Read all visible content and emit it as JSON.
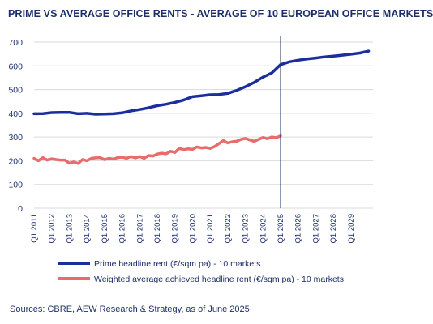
{
  "title": "PRIME VS AVERAGE OFFICE RENTS - AVERAGE OF 10 EUROPEAN OFFICE MARKETS",
  "source": "Sources: CBRE, AEW Research & Strategy, as of June 2025",
  "chart_data": {
    "type": "line",
    "title": "PRIME VS AVERAGE OFFICE RENTS - AVERAGE OF 10 EUROPEAN OFFICE MARKETS",
    "ylim": [
      0,
      700
    ],
    "yticks": [
      "0",
      "100",
      "200",
      "300",
      "400",
      "500",
      "600",
      "700"
    ],
    "xlim": [
      2011,
      2030.25
    ],
    "xtick_labels": [
      "Q1 2011",
      "Q1 2012",
      "Q1 2013",
      "Q1 2014",
      "Q1 2015",
      "Q1 2016",
      "Q1 2017",
      "Q1 2018",
      "Q1 2019",
      "Q1 2020",
      "Q1 2021",
      "Q1 2022",
      "Q1 2023",
      "Q1 2024",
      "Q1 2025",
      "Q1 2026",
      "Q1 2027",
      "Q1 2028",
      "Q1 2029"
    ],
    "grid": "horizontal",
    "legend_position": "bottom",
    "vline_at": "Q1 2025",
    "colors": {
      "prime": "#1a2f9b",
      "weighted": "#e86c6c",
      "text": "#1b2f6b",
      "grid": "#d9d9d9",
      "vline": "#1a2a5e"
    },
    "series": [
      {
        "name": "Prime headline rent (€/sqm pa) - 10 markets",
        "x": [
          2011,
          2011.5,
          2012,
          2012.5,
          2013,
          2013.5,
          2014,
          2014.5,
          2015,
          2015.5,
          2016,
          2016.5,
          2017,
          2017.5,
          2018,
          2018.5,
          2019,
          2019.5,
          2020,
          2020.5,
          2021,
          2021.5,
          2022,
          2022.5,
          2023,
          2023.5,
          2024,
          2024.5,
          2025,
          2025.5,
          2026,
          2026.5,
          2027,
          2027.5,
          2028,
          2028.5,
          2029,
          2029.5,
          2030
        ],
        "values": [
          398,
          399,
          403,
          404,
          404,
          398,
          400,
          396,
          397,
          398,
          402,
          410,
          416,
          423,
          432,
          438,
          446,
          456,
          470,
          474,
          478,
          479,
          484,
          496,
          512,
          530,
          552,
          570,
          605,
          617,
          624,
          629,
          633,
          638,
          641,
          645,
          649,
          654,
          662
        ]
      },
      {
        "name": "Weighted average achieved headline rent (€/sqm pa) - 10 markets",
        "x": [
          2011,
          2011.25,
          2011.5,
          2011.75,
          2012,
          2012.25,
          2012.5,
          2012.75,
          2013,
          2013.25,
          2013.5,
          2013.75,
          2014,
          2014.25,
          2014.5,
          2014.75,
          2015,
          2015.25,
          2015.5,
          2015.75,
          2016,
          2016.25,
          2016.5,
          2016.75,
          2017,
          2017.25,
          2017.5,
          2017.75,
          2018,
          2018.25,
          2018.5,
          2018.75,
          2019,
          2019.25,
          2019.5,
          2019.75,
          2020,
          2020.25,
          2020.5,
          2020.75,
          2021,
          2021.25,
          2021.5,
          2021.75,
          2022,
          2022.25,
          2022.5,
          2022.75,
          2023,
          2023.25,
          2023.5,
          2023.75,
          2024,
          2024.25,
          2024.5,
          2024.75,
          2025
        ],
        "values": [
          210,
          200,
          213,
          203,
          208,
          205,
          203,
          203,
          190,
          195,
          188,
          205,
          200,
          210,
          212,
          213,
          205,
          210,
          207,
          213,
          215,
          210,
          218,
          212,
          218,
          210,
          222,
          220,
          228,
          232,
          229,
          240,
          235,
          252,
          247,
          250,
          248,
          258,
          254,
          256,
          252,
          260,
          272,
          285,
          275,
          280,
          282,
          290,
          294,
          288,
          282,
          290,
          298,
          293,
          300,
          297,
          305
        ]
      }
    ]
  }
}
